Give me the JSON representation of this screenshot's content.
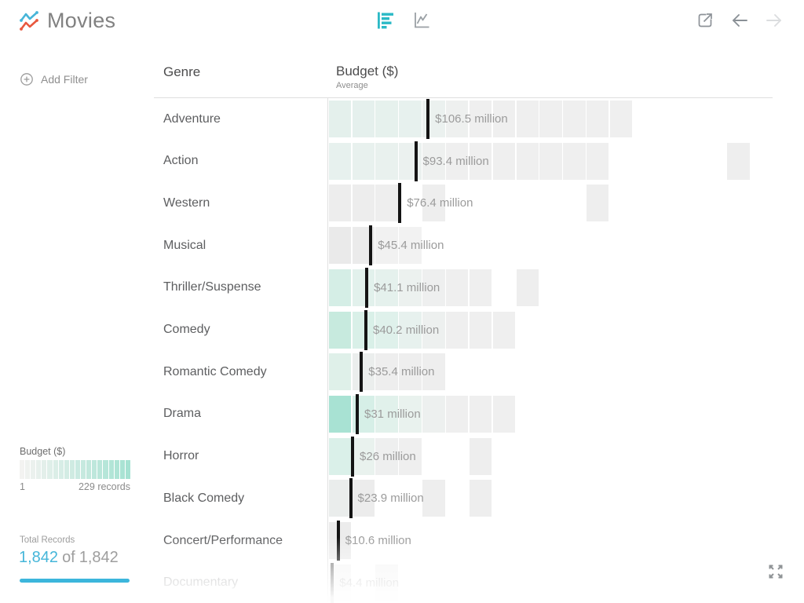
{
  "app": {
    "title": "Movies"
  },
  "toolbar": {
    "view_bar_color": "#2bb9c6",
    "view_line_color": "#9aa0a5",
    "nav_enabled_color": "#8a9096",
    "nav_disabled_color": "#dbdddf"
  },
  "sidebar": {
    "add_filter_label": "Add Filter",
    "legend": {
      "title": "Budget ($)",
      "min_label": "1",
      "max_label": "229 records",
      "segments": 20,
      "start_color": "#f3f3f1",
      "end_color": "#a6e2d2"
    },
    "total_records": {
      "label": "Total Records",
      "shown": "1,842",
      "separator": "of",
      "total": "1,842",
      "accent_color": "#3cb6dc"
    }
  },
  "table": {
    "genre_header": "Genre",
    "measure_header": "Budget ($)",
    "measure_subheader": "Average"
  },
  "chart_data": {
    "type": "heatmap",
    "orientation": "horizontal-binned-rows",
    "title": "Budget ($) Average by Genre",
    "unit": "USD millions",
    "bucket_size_millions": 25,
    "color_scale": {
      "min_records": 1,
      "max_records": 229,
      "min_color": "#f3f3f1",
      "max_color": "#a6e2d2"
    },
    "rows": [
      {
        "genre": "Adventure",
        "average_millions": 106.5,
        "average_label": "$106.5 million",
        "cells": [
          [
            0,
            "#e4f0ec"
          ],
          [
            1,
            "#e5f0ed"
          ],
          [
            2,
            "#e6f1ed"
          ],
          [
            3,
            "#e7f1ee"
          ],
          [
            4,
            "#ebf1ef"
          ],
          [
            5,
            "#eef0ef"
          ],
          [
            6,
            "#efefef"
          ],
          [
            7,
            "#efefef"
          ],
          [
            8,
            "#efefef"
          ],
          [
            9,
            "#efefef"
          ],
          [
            10,
            "#efefef"
          ],
          [
            11,
            "#efefef"
          ],
          [
            12,
            "#efefef"
          ]
        ]
      },
      {
        "genre": "Action",
        "average_millions": 93.4,
        "average_label": "$93.4 million",
        "cells": [
          [
            0,
            "#e7f1ee"
          ],
          [
            1,
            "#e8f1ee"
          ],
          [
            2,
            "#e9f1ee"
          ],
          [
            3,
            "#ebf1ef"
          ],
          [
            4,
            "#eef0ef"
          ],
          [
            5,
            "#efefef"
          ],
          [
            6,
            "#efefef"
          ],
          [
            7,
            "#efefef"
          ],
          [
            8,
            "#efefef"
          ],
          [
            9,
            "#efefef"
          ],
          [
            10,
            "#efefef"
          ],
          [
            11,
            "#efefef"
          ],
          [
            17,
            "#eeeeee"
          ]
        ]
      },
      {
        "genre": "Western",
        "average_millions": 76.4,
        "average_label": "$76.4 million",
        "cells": [
          [
            0,
            "#ededed"
          ],
          [
            1,
            "#ededed"
          ],
          [
            2,
            "#eeeeee"
          ],
          [
            4,
            "#eeeeee"
          ],
          [
            11,
            "#eeeeee"
          ]
        ]
      },
      {
        "genre": "Musical",
        "average_millions": 45.4,
        "average_label": "$45.4 million",
        "cells": [
          [
            0,
            "#eaeaea"
          ],
          [
            1,
            "#ebebeb"
          ],
          [
            2,
            "#f1f1f1"
          ],
          [
            3,
            "#f2f2f2"
          ]
        ]
      },
      {
        "genre": "Thriller/Suspense",
        "average_millions": 41.1,
        "average_label": "$41.1 million",
        "cells": [
          [
            0,
            "#d5eee6"
          ],
          [
            1,
            "#e2f1ec"
          ],
          [
            2,
            "#e5f1ed"
          ],
          [
            3,
            "#ecf1ef"
          ],
          [
            4,
            "#eeefef"
          ],
          [
            5,
            "#efefef"
          ],
          [
            6,
            "#efefef"
          ],
          [
            8,
            "#eeeeee"
          ]
        ]
      },
      {
        "genre": "Comedy",
        "average_millions": 40.2,
        "average_label": "$40.2 million",
        "cells": [
          [
            0,
            "#c7eade"
          ],
          [
            1,
            "#d9f0e8"
          ],
          [
            2,
            "#dff1eb"
          ],
          [
            3,
            "#e7f1ee"
          ],
          [
            4,
            "#edf0ef"
          ],
          [
            5,
            "#efefef"
          ],
          [
            6,
            "#efefef"
          ],
          [
            7,
            "#efefef"
          ]
        ]
      },
      {
        "genre": "Romantic Comedy",
        "average_millions": 35.4,
        "average_label": "$35.4 million",
        "cells": [
          [
            0,
            "#dff0e9"
          ],
          [
            1,
            "#ebeeed"
          ],
          [
            2,
            "#eeeeee"
          ],
          [
            3,
            "#eeeeee"
          ],
          [
            4,
            "#eeeeee"
          ]
        ]
      },
      {
        "genre": "Drama",
        "average_millions": 31,
        "average_label": "$31 million",
        "cells": [
          [
            0,
            "#a8e2d3"
          ],
          [
            1,
            "#d6efe7"
          ],
          [
            2,
            "#e1f1eb"
          ],
          [
            3,
            "#e9f2ee"
          ],
          [
            4,
            "#edf0ef"
          ],
          [
            5,
            "#efefef"
          ],
          [
            6,
            "#efefef"
          ],
          [
            7,
            "#efefef"
          ]
        ]
      },
      {
        "genre": "Horror",
        "average_millions": 26,
        "average_label": "$26 million",
        "cells": [
          [
            0,
            "#daf0e9"
          ],
          [
            1,
            "#e9f2ee"
          ],
          [
            2,
            "#eeefef"
          ],
          [
            3,
            "#efefef"
          ],
          [
            6,
            "#eeeeee"
          ]
        ]
      },
      {
        "genre": "Black Comedy",
        "average_millions": 23.9,
        "average_label": "$23.9 million",
        "cells": [
          [
            0,
            "#eaedec"
          ],
          [
            1,
            "#ececec"
          ],
          [
            4,
            "#eeeeee"
          ],
          [
            6,
            "#eeeeee"
          ]
        ]
      },
      {
        "genre": "Concert/Performance",
        "average_millions": 10.6,
        "average_label": "$10.6 million",
        "cells": [
          [
            0,
            "#ececec"
          ]
        ]
      },
      {
        "genre": "Documentary",
        "average_millions": 4.4,
        "average_label": "$4.4 million",
        "faded": true,
        "cells": [
          [
            0,
            "#ededed"
          ],
          [
            2,
            "#ededed"
          ]
        ]
      }
    ]
  }
}
